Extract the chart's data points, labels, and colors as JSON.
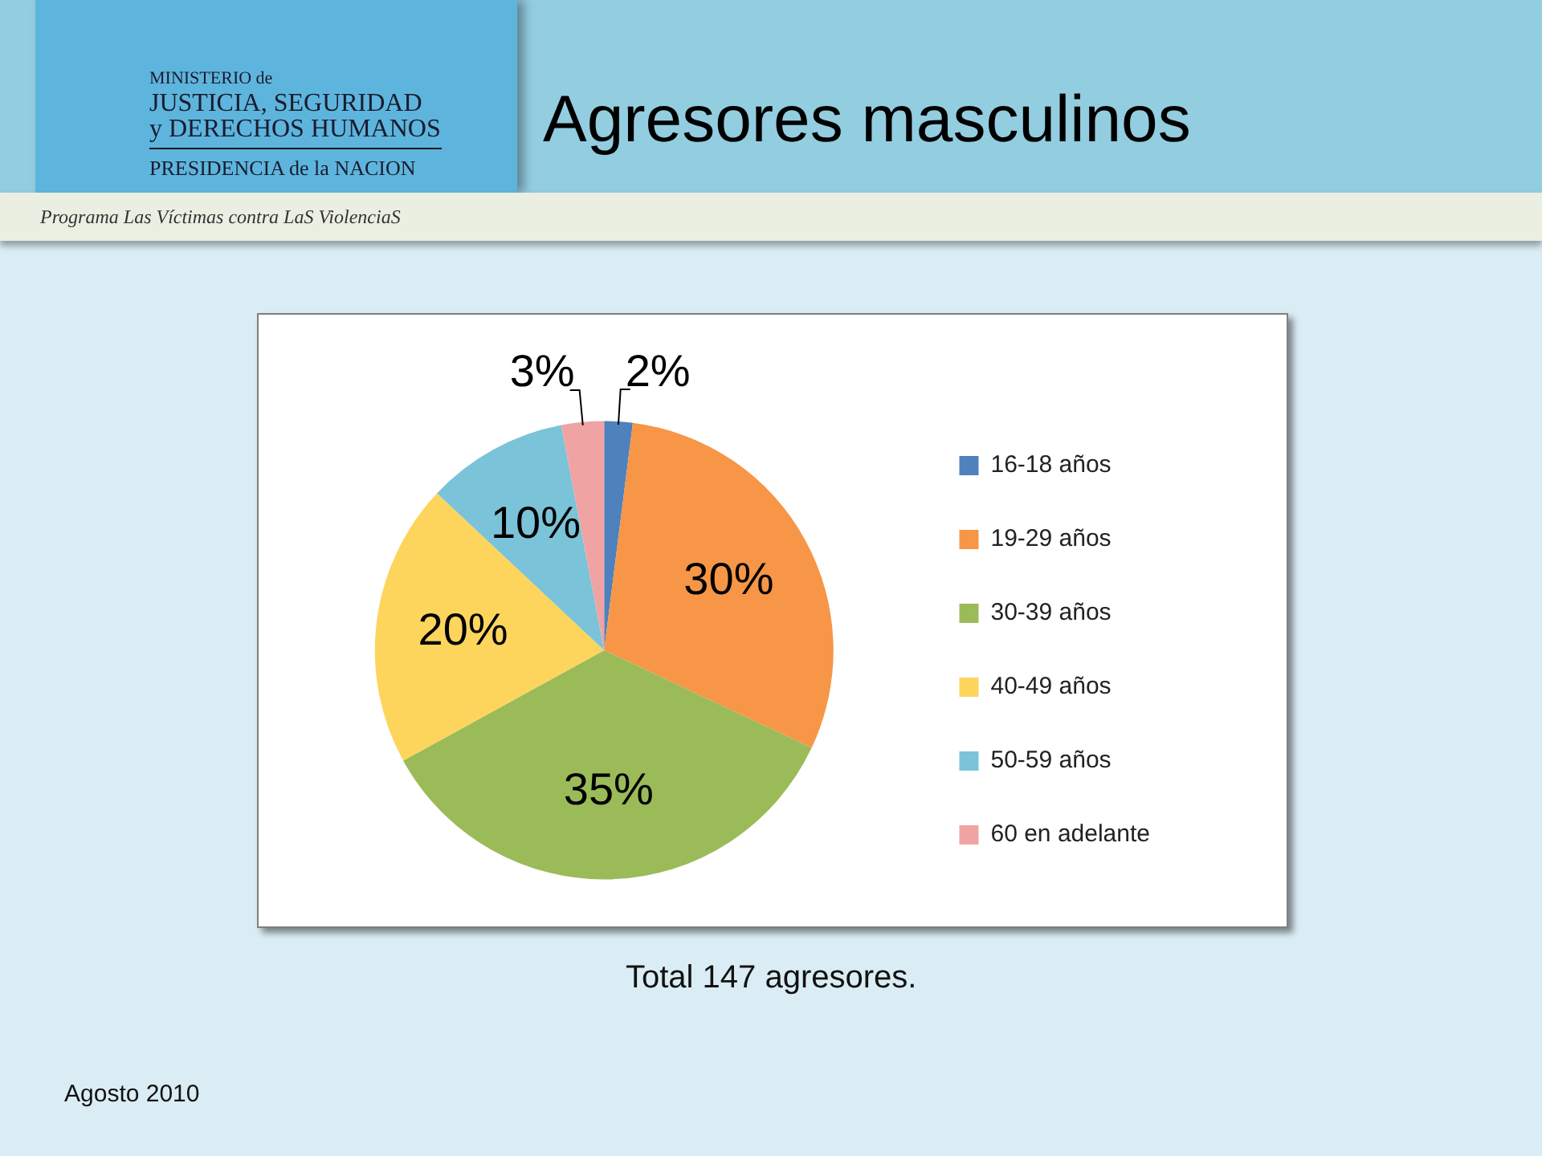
{
  "chart_data": {
    "type": "pie",
    "title": "Agresores masculinos",
    "categories": [
      "16-18 años",
      "19-29 años",
      "30-39 años",
      "40-49 años",
      "50-59 años",
      "60 en adelante"
    ],
    "values": [
      2,
      30,
      35,
      20,
      10,
      3
    ],
    "colors": [
      "#4f81bd",
      "#f79646",
      "#9bbb59",
      "#fdd55c",
      "#7bc3d8",
      "#f0a3a3"
    ],
    "value_labels": [
      "2%",
      "30%",
      "35%",
      "20%",
      "10%",
      "3%"
    ],
    "legend": "right",
    "annotations": [
      "MINISTERIO de",
      "JUSTICIA, SEGURIDAD",
      "y DERECHOS HUMANOS",
      "PRESIDENCIA de la NACION",
      "Programa Las Víctimas contra LaS ViolenciaS",
      "Total 147 agresores.",
      "Agosto 2010"
    ]
  }
}
